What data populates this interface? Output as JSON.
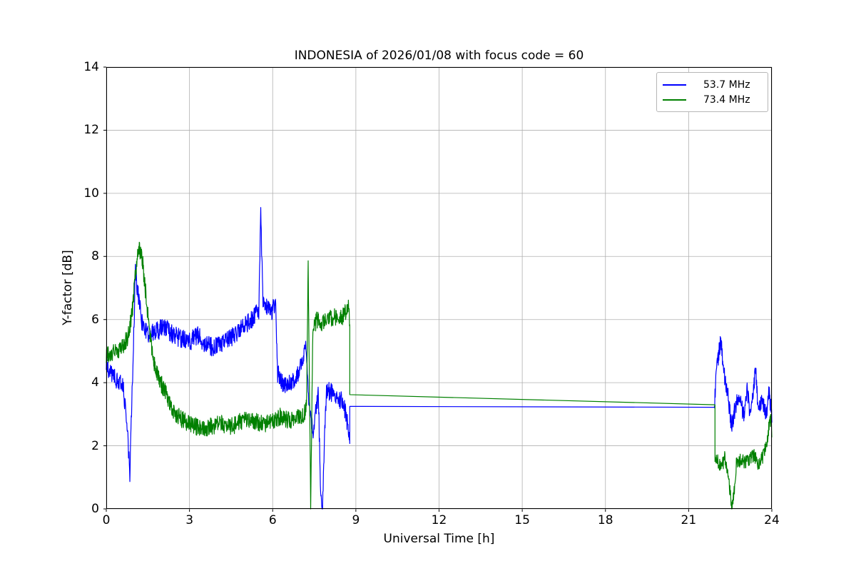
{
  "chart_data": {
    "type": "line",
    "title": "INDONESIA of 2026/01/08 with focus code = 60",
    "xlabel": "Universal Time [h]",
    "ylabel": "Y-factor [dB]",
    "xlim": [
      0,
      24
    ],
    "ylim": [
      0,
      14
    ],
    "xticks": [
      0,
      3,
      6,
      9,
      12,
      15,
      18,
      21,
      24
    ],
    "yticks": [
      0,
      2,
      4,
      6,
      8,
      10,
      12,
      14
    ],
    "grid": true,
    "grid_color": "#b0b0b0",
    "frame_color": "#000000",
    "legend_position": "upper right",
    "series": [
      {
        "name": "53.7 MHz",
        "color": "#0000ff",
        "segments": [
          {
            "noise": 0.3,
            "anchors": [
              [
                0,
                4.55
              ],
              [
                0.2,
                4.3
              ],
              [
                0.45,
                4.0
              ],
              [
                0.6,
                3.9
              ],
              [
                0.75,
                2.6
              ],
              [
                0.85,
                1.15
              ],
              [
                0.95,
                4.2
              ],
              [
                1.05,
                7.5
              ],
              [
                1.15,
                6.8
              ],
              [
                1.3,
                5.8
              ],
              [
                1.5,
                5.5
              ],
              [
                1.8,
                5.6
              ],
              [
                2.1,
                5.8
              ],
              [
                2.4,
                5.5
              ],
              [
                2.7,
                5.4
              ],
              [
                3.0,
                5.3
              ],
              [
                3.3,
                5.5
              ],
              [
                3.6,
                5.2
              ],
              [
                3.9,
                5.1
              ],
              [
                4.2,
                5.3
              ],
              [
                4.5,
                5.4
              ],
              [
                4.8,
                5.7
              ],
              [
                5.1,
                5.9
              ],
              [
                5.35,
                6.1
              ],
              [
                5.5,
                6.3
              ],
              [
                5.57,
                9.3
              ],
              [
                5.65,
                6.6
              ],
              [
                5.8,
                6.4
              ],
              [
                5.95,
                6.2
              ],
              [
                6.1,
                6.6
              ],
              [
                6.18,
                4.3
              ],
              [
                6.35,
                4.0
              ],
              [
                6.55,
                3.9
              ],
              [
                6.75,
                4.1
              ],
              [
                6.95,
                4.3
              ],
              [
                7.1,
                4.9
              ],
              [
                7.2,
                5.1
              ],
              [
                7.3,
                3.4
              ],
              [
                7.45,
                2.4
              ],
              [
                7.55,
                3.2
              ],
              [
                7.65,
                3.6
              ],
              [
                7.73,
                0.3
              ],
              [
                7.8,
                0.1
              ],
              [
                7.88,
                2.5
              ],
              [
                7.95,
                3.8
              ],
              [
                8.1,
                3.7
              ],
              [
                8.3,
                3.5
              ],
              [
                8.5,
                3.4
              ],
              [
                8.65,
                3.0
              ],
              [
                8.78,
                2.1
              ]
            ]
          },
          {
            "noise": 0,
            "anchors": [
              [
                8.78,
                3.25
              ],
              [
                21.93,
                3.22
              ]
            ]
          },
          {
            "noise": 0.28,
            "anchors": [
              [
                21.93,
                3.3
              ],
              [
                22.0,
                4.3
              ],
              [
                22.1,
                5.0
              ],
              [
                22.16,
                5.35
              ],
              [
                22.25,
                4.4
              ],
              [
                22.4,
                3.7
              ],
              [
                22.55,
                2.6
              ],
              [
                22.7,
                3.3
              ],
              [
                22.85,
                3.5
              ],
              [
                23.0,
                2.9
              ],
              [
                23.1,
                3.9
              ],
              [
                23.2,
                3.1
              ],
              [
                23.3,
                3.4
              ],
              [
                23.42,
                4.5
              ],
              [
                23.5,
                3.2
              ],
              [
                23.65,
                3.5
              ],
              [
                23.8,
                3.0
              ],
              [
                23.9,
                3.7
              ],
              [
                24,
                2.9
              ]
            ]
          }
        ]
      },
      {
        "name": "73.4 MHz",
        "color": "#008000",
        "segments": [
          {
            "noise": 0.28,
            "anchors": [
              [
                0,
                4.9
              ],
              [
                0.3,
                5.0
              ],
              [
                0.55,
                5.05
              ],
              [
                0.8,
                5.5
              ],
              [
                0.95,
                6.4
              ],
              [
                1.1,
                7.9
              ],
              [
                1.2,
                8.25
              ],
              [
                1.3,
                7.9
              ],
              [
                1.45,
                6.6
              ],
              [
                1.6,
                5.3
              ],
              [
                1.75,
                4.5
              ],
              [
                1.95,
                4.0
              ],
              [
                2.15,
                3.7
              ],
              [
                2.4,
                3.1
              ],
              [
                2.7,
                2.85
              ],
              [
                3.0,
                2.7
              ],
              [
                3.3,
                2.6
              ],
              [
                3.6,
                2.55
              ],
              [
                3.9,
                2.65
              ],
              [
                4.2,
                2.7
              ],
              [
                4.5,
                2.6
              ],
              [
                4.8,
                2.75
              ],
              [
                5.1,
                2.85
              ],
              [
                5.4,
                2.75
              ],
              [
                5.7,
                2.7
              ],
              [
                6.0,
                2.75
              ],
              [
                6.3,
                2.95
              ],
              [
                6.6,
                2.8
              ],
              [
                6.9,
                2.9
              ],
              [
                7.1,
                3.0
              ],
              [
                7.22,
                3.2
              ],
              [
                7.28,
                7.65
              ],
              [
                7.33,
                3.5
              ],
              [
                7.37,
                0.1
              ],
              [
                7.45,
                5.7
              ],
              [
                7.6,
                6.0
              ],
              [
                7.8,
                5.9
              ],
              [
                8.0,
                6.0
              ],
              [
                8.2,
                6.1
              ],
              [
                8.4,
                5.95
              ],
              [
                8.6,
                6.2
              ],
              [
                8.72,
                6.45
              ],
              [
                8.78,
                6.0
              ]
            ]
          },
          {
            "noise": 0,
            "anchors": [
              [
                8.78,
                3.62
              ],
              [
                21.95,
                3.3
              ]
            ]
          },
          {
            "noise": 0.22,
            "anchors": [
              [
                21.95,
                1.7
              ],
              [
                22.05,
                1.5
              ],
              [
                22.2,
                1.35
              ],
              [
                22.3,
                1.6
              ],
              [
                22.42,
                1.0
              ],
              [
                22.5,
                0.5
              ],
              [
                22.57,
                0.05
              ],
              [
                22.65,
                0.6
              ],
              [
                22.72,
                1.4
              ],
              [
                22.9,
                1.6
              ],
              [
                23.05,
                1.45
              ],
              [
                23.2,
                1.6
              ],
              [
                23.35,
                1.7
              ],
              [
                23.5,
                1.45
              ],
              [
                23.65,
                1.6
              ],
              [
                23.8,
                2.0
              ],
              [
                23.9,
                2.6
              ],
              [
                23.97,
                2.9
              ],
              [
                24,
                2.2
              ]
            ]
          }
        ]
      }
    ]
  }
}
